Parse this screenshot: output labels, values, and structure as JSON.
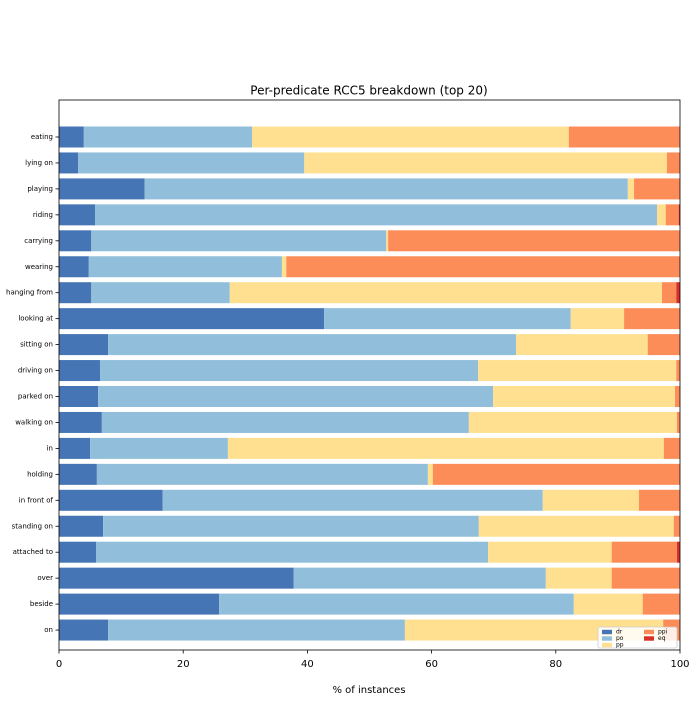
{
  "chart_data": {
    "type": "stacked_barh",
    "title": "Per-predicate RCC5 breakdown (top 20)",
    "xlabel": "% of instances",
    "categories": [
      "eating",
      "lying on",
      "playing",
      "riding",
      "carrying",
      "wearing",
      "hanging from",
      "looking at",
      "sitting on",
      "driving on",
      "parked on",
      "walking on",
      "in",
      "holding",
      "in front of",
      "standing on",
      "attached to",
      "over",
      "beside",
      "on"
    ],
    "series": [
      {
        "name": "dr",
        "color": "#4575b4",
        "values": [
          4.0,
          3.1,
          13.8,
          5.8,
          5.2,
          4.8,
          5.2,
          42.7,
          7.9,
          6.6,
          6.3,
          6.9,
          5.0,
          6.1,
          16.7,
          7.1,
          6.0,
          37.8,
          25.8,
          7.9
        ]
      },
      {
        "name": "po",
        "color": "#91bfdb",
        "values": [
          27.1,
          36.4,
          77.8,
          90.5,
          47.5,
          31.1,
          22.3,
          39.7,
          65.7,
          60.9,
          63.6,
          59.1,
          22.2,
          53.3,
          61.2,
          60.5,
          63.1,
          40.6,
          57.1,
          47.8
        ]
      },
      {
        "name": "pp",
        "color": "#fee090",
        "values": [
          51.0,
          58.4,
          1.0,
          1.4,
          0.3,
          0.7,
          69.6,
          8.6,
          21.2,
          31.9,
          29.3,
          33.5,
          70.2,
          0.8,
          15.5,
          31.4,
          19.9,
          10.6,
          11.1,
          41.6
        ]
      },
      {
        "name": "ppi",
        "color": "#fc8d59",
        "values": [
          17.9,
          2.1,
          7.4,
          2.1,
          47.0,
          63.4,
          2.3,
          9.0,
          5.2,
          0.6,
          0.8,
          0.5,
          2.6,
          39.8,
          6.6,
          1.0,
          10.5,
          11.0,
          6.0,
          2.7
        ]
      },
      {
        "name": "eq",
        "color": "#d73027",
        "values": [
          0,
          0,
          0,
          0.2,
          0,
          0,
          0.6,
          0,
          0,
          0,
          0,
          0,
          0,
          0,
          0,
          0,
          0.5,
          0,
          0,
          0
        ]
      }
    ],
    "xlim": [
      0,
      100
    ],
    "xticks": [
      0,
      20,
      40,
      60,
      80,
      100
    ],
    "legend": "lower right"
  }
}
